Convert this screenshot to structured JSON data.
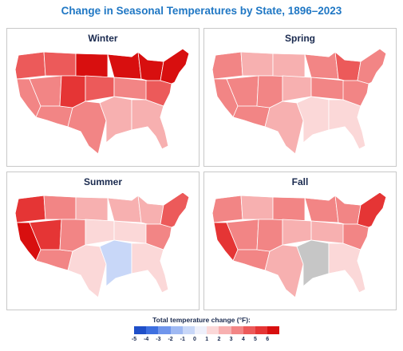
{
  "title": "Change in Seasonal Temperatures by State, 1896–2023",
  "panels": [
    {
      "title": "Winter"
    },
    {
      "title": "Spring"
    },
    {
      "title": "Summer"
    },
    {
      "title": "Fall"
    }
  ],
  "legend": {
    "title": "Total temperature change (°F):",
    "ticks": [
      "-5",
      "-4",
      "-3",
      "-2",
      "-1",
      "0",
      "1",
      "2",
      "3",
      "4",
      "5",
      "6"
    ],
    "colors": [
      "#1f4fc8",
      "#3d6fe0",
      "#6f95ec",
      "#9fb9f3",
      "#c8d7f8",
      "#eef0fb",
      "#fbd8d8",
      "#f7b0b0",
      "#f28585",
      "#ec5a5a",
      "#e53535",
      "#d80f0f"
    ]
  },
  "colors": {
    "title": "#1f77c4",
    "no_data": "#c6c6c6"
  }
}
